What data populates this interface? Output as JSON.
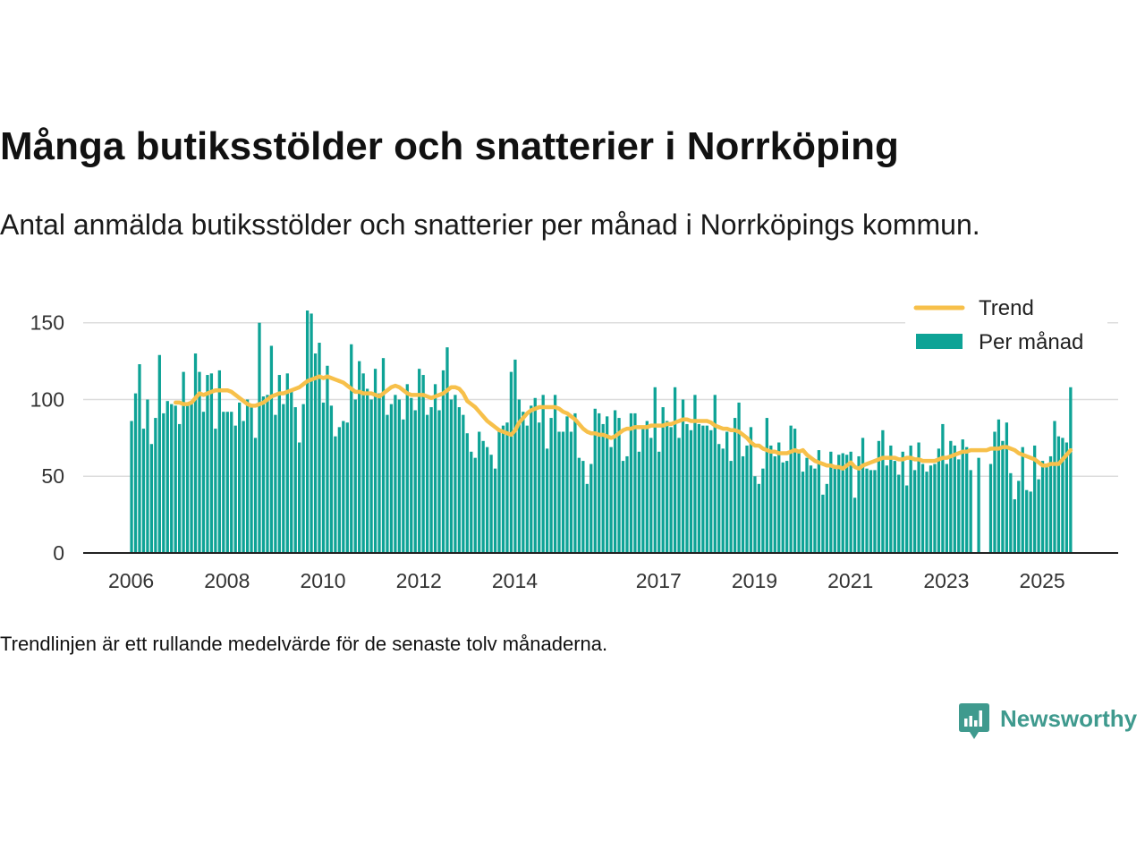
{
  "chart_data": {
    "type": "bar",
    "title": "Många butiksstölder och snatterier i Norrköping",
    "subtitle": "Antal anmälda butiksstölder och snatterier per månad i Norrköpings kommun.",
    "note": "Trendlinjen är ett rullande medelvärde för de senaste tolv månaderna.",
    "xlabel": "",
    "ylabel": "",
    "x_ticks": [
      "2006",
      "2008",
      "2010",
      "2012",
      "2014",
      "2017",
      "2019",
      "2021",
      "2023",
      "2025"
    ],
    "y_ticks": [
      0,
      50,
      100,
      150
    ],
    "xlim": [
      "2005-01",
      "2026-08"
    ],
    "ylim": [
      0,
      165
    ],
    "grid": "horizontal",
    "legend_position": "top-right",
    "series": [
      {
        "name": "Trend",
        "type": "line",
        "color": "#f7c04a",
        "values_by_year": {
          "2006": [
            null,
            null,
            null,
            null,
            null,
            null,
            null,
            null,
            null,
            null,
            null,
            98
          ],
          "2007": [
            98,
            97,
            97,
            98,
            101,
            104,
            103,
            104,
            105,
            106,
            106,
            106
          ],
          "2008": [
            106,
            105,
            103,
            101,
            99,
            97,
            96,
            96,
            97,
            98,
            100,
            102
          ],
          "2009": [
            103,
            104,
            104,
            105,
            106,
            107,
            108,
            110,
            112,
            113,
            114,
            115
          ],
          "2010": [
            114,
            115,
            114,
            113,
            112,
            111,
            109,
            107,
            105,
            105,
            104,
            104
          ],
          "2011": [
            104,
            103,
            102,
            104,
            106,
            108,
            109,
            108,
            106,
            104,
            103,
            103
          ],
          "2012": [
            103,
            103,
            102,
            101,
            102,
            103,
            104,
            106,
            108,
            108,
            107,
            104
          ],
          "2013": [
            99,
            97,
            95,
            92,
            89,
            86,
            84,
            82,
            80,
            79,
            78,
            77
          ],
          "2014": [
            80,
            85,
            88,
            91,
            93,
            94,
            95,
            95,
            95,
            95,
            95,
            94
          ],
          "2015": [
            92,
            91,
            89,
            87,
            84,
            81,
            79,
            78,
            78,
            77,
            77,
            76
          ],
          "2016": [
            75,
            76,
            78,
            80,
            81,
            81,
            82,
            82,
            82,
            82,
            83,
            83
          ],
          "2017": [
            83,
            83,
            84,
            84,
            85,
            86,
            87,
            87,
            86,
            86,
            86,
            86
          ],
          "2018": [
            86,
            85,
            83,
            82,
            81,
            81,
            80,
            80,
            79,
            77,
            75,
            72
          ],
          "2019": [
            70,
            70,
            68,
            67,
            66,
            66,
            65,
            65,
            65,
            66,
            67,
            66
          ],
          "2020": [
            67,
            64,
            62,
            60,
            59,
            58,
            57,
            57,
            56,
            56,
            55,
            57
          ],
          "2021": [
            59,
            56,
            55,
            57,
            58,
            59,
            60,
            61,
            62,
            62,
            62,
            62
          ],
          "2022": [
            61,
            61,
            62,
            62,
            61,
            61,
            60,
            60,
            60,
            60,
            61,
            62
          ],
          "2023": [
            62,
            63,
            64,
            65,
            66,
            66,
            67,
            67,
            67,
            67,
            67,
            68
          ],
          "2024": [
            68,
            68,
            69,
            69,
            68,
            67,
            65,
            64,
            63,
            62,
            61,
            59
          ],
          "2025": [
            57,
            57,
            58,
            58,
            58,
            61,
            64,
            67
          ]
        }
      },
      {
        "name": "Per månad",
        "type": "bar",
        "color": "#0ea396",
        "values_by_year": {
          "2006": [
            86,
            104,
            123,
            81,
            100,
            71,
            88,
            129,
            91,
            99,
            97,
            96
          ],
          "2007": [
            84,
            118,
            97,
            99,
            130,
            118,
            92,
            116,
            117,
            81,
            119,
            92
          ],
          "2008": [
            92,
            92,
            83,
            98,
            86,
            100,
            95,
            75,
            150,
            102,
            103,
            135
          ],
          "2009": [
            90,
            116,
            97,
            117,
            105,
            95,
            72,
            97,
            158,
            156,
            130,
            137
          ],
          "2010": [
            98,
            122,
            96,
            76,
            82,
            86,
            85,
            136,
            100,
            125,
            117,
            107
          ],
          "2011": [
            100,
            120,
            104,
            127,
            90,
            97,
            103,
            100,
            87,
            110,
            101,
            93
          ],
          "2012": [
            120,
            116,
            90,
            95,
            110,
            93,
            119,
            134,
            100,
            103,
            95,
            90
          ],
          "2013": [
            78,
            66,
            62,
            79,
            73,
            69,
            64,
            55,
            80,
            83,
            85,
            118
          ],
          "2014": [
            126,
            100,
            92,
            83,
            96,
            101,
            85,
            103,
            68,
            88,
            103,
            79
          ],
          "2015": [
            79,
            89,
            79,
            91,
            62,
            60,
            45,
            58,
            94,
            91,
            84,
            89
          ],
          "2016": [
            69,
            93,
            88,
            60,
            63,
            91,
            91,
            66,
            82,
            86,
            75,
            108
          ],
          "2017": [
            66,
            95,
            86,
            82,
            108,
            75,
            100,
            84,
            80,
            103,
            84,
            83
          ],
          "2018": [
            83,
            80,
            103,
            71,
            68,
            79,
            60,
            88,
            98,
            63,
            70,
            82
          ],
          "2019": [
            50,
            45,
            55,
            88,
            70,
            63,
            72,
            59,
            60,
            83,
            81,
            65
          ],
          "2020": [
            53,
            62,
            57,
            55,
            67,
            38,
            45,
            66,
            57,
            64,
            65,
            64
          ],
          "2021": [
            66,
            36,
            63,
            75,
            55,
            54,
            54,
            73,
            80,
            57,
            70,
            60
          ],
          "2022": [
            51,
            66,
            44,
            70,
            54,
            72,
            58,
            53,
            57,
            58,
            68,
            84
          ],
          "2023": [
            58,
            73,
            70,
            61,
            74,
            69,
            54,
            null,
            62,
            null,
            null,
            58
          ],
          "2024": [
            79,
            87,
            73,
            85,
            52,
            35,
            47,
            69,
            41,
            40,
            70,
            48
          ],
          "2025": [
            60,
            57,
            63,
            86,
            76,
            75,
            72,
            108
          ]
        }
      }
    ]
  },
  "brand": {
    "name": "Newsworthy",
    "color": "#3f9a8e",
    "icon": "bar-chart-speech-bubble-icon"
  }
}
